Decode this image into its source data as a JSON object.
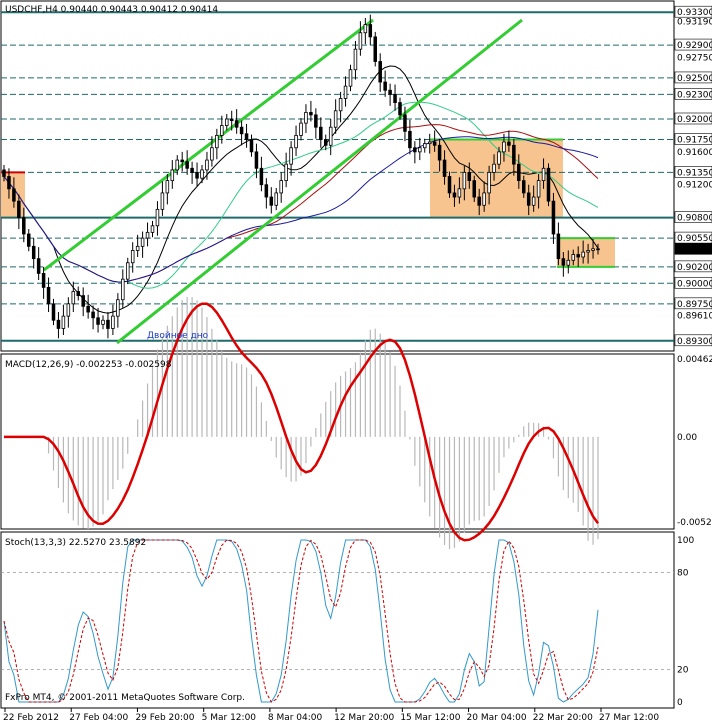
{
  "header": {
    "main": "USDCHF,H4  0.90440 0.90443 0.90412 0.90414",
    "macd": "MACD(12,26,9) -0.002253 -0.002598",
    "stoch": "Stoch(13,3,3) 22.5270 23.5892",
    "copyright": "FxPro MT4, © 2001-2011 MetaQuotes Software Corp."
  },
  "annotation": "Двойное дно",
  "colors": {
    "up_candle": "#000000",
    "down_candle": "#000000",
    "channel": "#33cc33",
    "level_line": "#1f6a6a",
    "highlight_box": "#f7c48f",
    "macd_hist": "#b8b8b8",
    "macd_signal": "#dd0000",
    "stoch_main": "#3399cc",
    "stoch_signal": "#cc0000",
    "ma_black": "#000000",
    "ma_blue": "#1a1aa0",
    "ma_red": "#aa1010",
    "ma_green": "#33cc88"
  },
  "chart_data": [
    {
      "type": "candlestick",
      "symbol": "USDCHF",
      "timeframe": "H4",
      "ylim": [
        0.892,
        0.934
      ],
      "y_ticks": [
        "0.93300",
        "0.93190",
        "0.92900",
        "0.92750",
        "0.92500",
        "0.92300",
        "0.92000",
        "0.91750",
        "0.91600",
        "0.91350",
        "0.91200",
        "0.90800",
        "0.90550",
        "0.90414",
        "0.90200",
        "0.90000",
        "0.89750",
        "0.89610",
        "0.89300"
      ],
      "highlighted_ticks": [
        "0.93300",
        "0.92900",
        "0.92500",
        "0.92300",
        "0.92000",
        "0.91750",
        "0.91350",
        "0.90800",
        "0.90550",
        "0.90414",
        "0.90200",
        "0.90000",
        "0.89750",
        "0.89300"
      ],
      "levels": [
        0.933,
        0.929,
        0.925,
        0.923,
        0.92,
        0.9175,
        0.9135,
        0.908,
        0.9055,
        0.902,
        0.9,
        0.8975,
        0.893
      ],
      "solid_levels": [
        0.933,
        0.908,
        0.893
      ],
      "x_labels": [
        "22 Feb 2012",
        "27 Feb 04:00",
        "29 Feb 20:00",
        "5 Mar 12:00",
        "8 Mar 04:00",
        "12 Mar 20:00",
        "15 Mar 12:00",
        "20 Mar 04:00",
        "22 Mar 20:00",
        "27 Mar 12:00"
      ],
      "current_price": 0.90414,
      "closes": [
        0.913,
        0.9115,
        0.91,
        0.908,
        0.906,
        0.9045,
        0.903,
        0.9012,
        0.8995,
        0.8975,
        0.8955,
        0.8945,
        0.896,
        0.8975,
        0.899,
        0.8985,
        0.8972,
        0.8965,
        0.8958,
        0.895,
        0.8955,
        0.8945,
        0.896,
        0.898,
        0.9005,
        0.9025,
        0.904,
        0.9045,
        0.9055,
        0.9062,
        0.907,
        0.909,
        0.911,
        0.9125,
        0.9138,
        0.915,
        0.9148,
        0.914,
        0.9135,
        0.9128,
        0.9138,
        0.915,
        0.9165,
        0.918,
        0.9192,
        0.92,
        0.9198,
        0.919,
        0.9182,
        0.9175,
        0.916,
        0.914,
        0.912,
        0.9105,
        0.9095,
        0.911,
        0.9125,
        0.9145,
        0.9165,
        0.918,
        0.9195,
        0.9208,
        0.9205,
        0.919,
        0.9175,
        0.9168,
        0.919,
        0.921,
        0.9225,
        0.924,
        0.926,
        0.9285,
        0.9305,
        0.9315,
        0.93,
        0.927,
        0.9245,
        0.9235,
        0.923,
        0.922,
        0.9205,
        0.9185,
        0.9165,
        0.916,
        0.9165,
        0.917,
        0.9172,
        0.9168,
        0.915,
        0.913,
        0.911,
        0.9105,
        0.9115,
        0.9135,
        0.9125,
        0.9105,
        0.9095,
        0.911,
        0.9135,
        0.9145,
        0.916,
        0.9172,
        0.9168,
        0.9145,
        0.9125,
        0.911,
        0.9095,
        0.9105,
        0.9125,
        0.914,
        0.91,
        0.906,
        0.903,
        0.9022,
        0.9028,
        0.9035,
        0.9032,
        0.9038,
        0.904,
        0.9042,
        0.9041
      ]
    },
    {
      "type": "line",
      "name": "MACD(12,26,9)",
      "ylim": [
        -0.00528,
        0.00462
      ],
      "y_ticks": [
        "0.00462",
        "0.00",
        "-0.00528"
      ],
      "signal_label_value": -0.002598,
      "main_label_value": -0.002253
    },
    {
      "type": "line",
      "name": "Stoch(13,3,3)",
      "ylim": [
        0,
        100
      ],
      "y_ticks": [
        "100",
        "80",
        "20",
        "0"
      ],
      "main_value": 22.527,
      "signal_value": 23.5892
    }
  ]
}
